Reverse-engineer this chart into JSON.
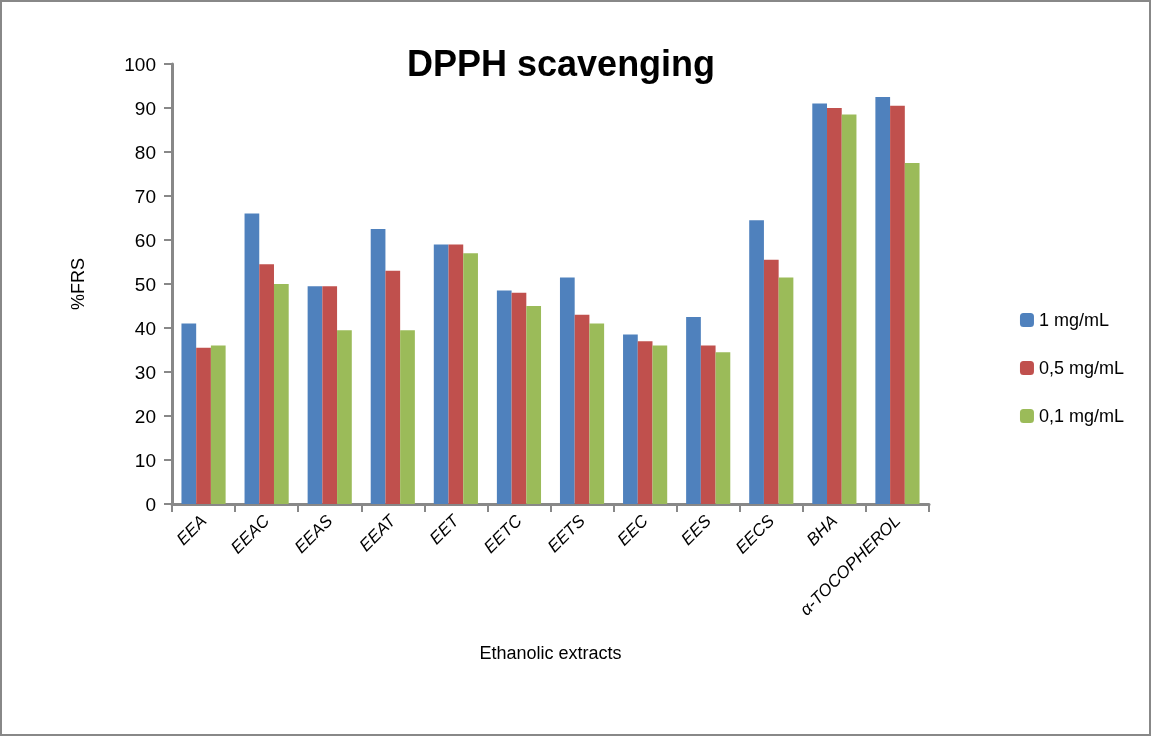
{
  "chart_data": {
    "type": "bar",
    "title": "DPPH scavenging",
    "xlabel": "Ethanolic extracts",
    "ylabel": "%FRS",
    "categories": [
      "EEA",
      "EEAC",
      "EEAS",
      "EEAT",
      "EET",
      "EETC",
      "EETS",
      "EEC",
      "EES",
      "EECS",
      "BHA",
      "α-TOCOPHEROL"
    ],
    "series": [
      {
        "name": "1 mg/mL",
        "color": "#4f81bd",
        "values": [
          41,
          66,
          49.5,
          62.5,
          59,
          48.5,
          51.5,
          38.5,
          42.5,
          64.5,
          91,
          92.5
        ]
      },
      {
        "name": "0,5 mg/mL",
        "color": "#c0504d",
        "values": [
          35.5,
          54.5,
          49.5,
          53,
          59,
          48,
          43,
          37,
          36,
          55.5,
          90,
          90.5
        ]
      },
      {
        "name": "0,1 mg/mL",
        "color": "#9bbb59",
        "values": [
          36,
          50,
          39.5,
          39.5,
          57,
          45,
          41,
          36,
          34.5,
          51.5,
          88.5,
          77.5
        ]
      }
    ],
    "ylim": [
      0,
      100
    ],
    "yticks": [
      0,
      10,
      20,
      30,
      40,
      50,
      60,
      70,
      80,
      90,
      100
    ],
    "grid": false,
    "legend": "right"
  }
}
